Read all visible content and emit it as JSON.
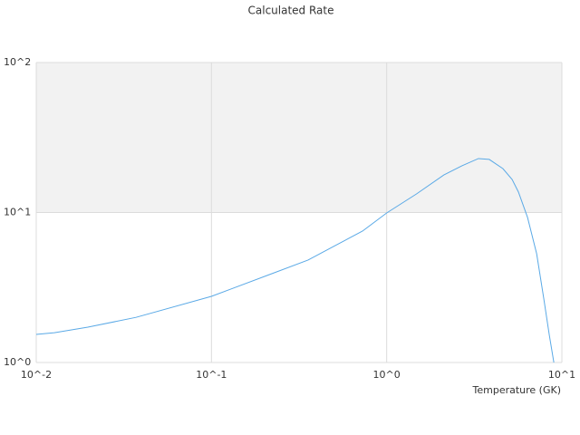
{
  "chart_data": {
    "type": "line",
    "title": "Calculated Rate",
    "x_label": "Temperature (GK)",
    "log_x": true,
    "log_y": true,
    "grid": true,
    "color": "#5aa9e6",
    "xlim": [
      0.01,
      10
    ],
    "ylim": [
      1,
      100
    ],
    "xticks": [
      {
        "value": 0.01,
        "label": "10^-2"
      },
      {
        "value": 0.1,
        "label": "10^-1"
      },
      {
        "value": 1,
        "label": "10^0"
      },
      {
        "value": 10,
        "label": "10^1"
      }
    ],
    "yticks": [
      {
        "value": 1,
        "label": "10^0"
      },
      {
        "value": 10,
        "label": "10^1"
      },
      {
        "value": 100,
        "label": "10^2"
      }
    ],
    "x": [
      0.01,
      0.0127,
      0.0197,
      0.0371,
      0.1,
      0.221,
      0.356,
      0.509,
      0.728,
      1,
      1.48,
      2.12,
      2.69,
      3.34,
      3.85,
      4.61,
      5.2,
      5.65,
      6.37,
      7.18,
      7.89,
      8.48,
      9.0
    ],
    "values": [
      1.54,
      1.58,
      1.72,
      2.0,
      2.76,
      3.91,
      4.82,
      6.02,
      7.52,
      9.93,
      13.3,
      17.8,
      20.5,
      22.9,
      22.6,
      19.6,
      16.6,
      13.7,
      9.27,
      5.31,
      2.65,
      1.52,
      1.0
    ]
  }
}
